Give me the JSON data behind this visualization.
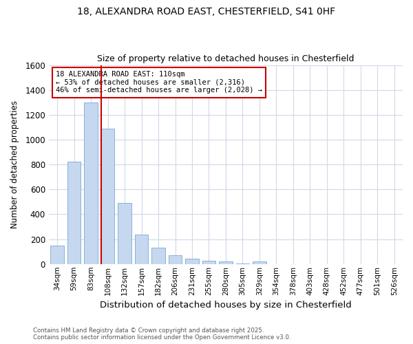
{
  "title_line1": "18, ALEXANDRA ROAD EAST, CHESTERFIELD, S41 0HF",
  "title_line2": "Size of property relative to detached houses in Chesterfield",
  "xlabel": "Distribution of detached houses by size in Chesterfield",
  "ylabel": "Number of detached properties",
  "footer_line1": "Contains HM Land Registry data © Crown copyright and database right 2025.",
  "footer_line2": "Contains public sector information licensed under the Open Government Licence v3.0.",
  "categories": [
    "34sqm",
    "59sqm",
    "83sqm",
    "108sqm",
    "132sqm",
    "157sqm",
    "182sqm",
    "206sqm",
    "231sqm",
    "255sqm",
    "280sqm",
    "305sqm",
    "329sqm",
    "354sqm",
    "378sqm",
    "403sqm",
    "428sqm",
    "452sqm",
    "477sqm",
    "501sqm",
    "526sqm"
  ],
  "values": [
    150,
    825,
    1300,
    1090,
    490,
    235,
    130,
    70,
    45,
    25,
    20,
    5,
    20,
    0,
    0,
    0,
    0,
    0,
    0,
    0,
    0
  ],
  "bar_color": "#c5d8f0",
  "bar_edge_color": "#8ab0d8",
  "grid_color": "#cccccc",
  "bg_color": "#ffffff",
  "plot_bg_color": "#ffffff",
  "red_line_index": 3,
  "annotation_text": "18 ALEXANDRA ROAD EAST: 110sqm\n← 53% of detached houses are smaller (2,316)\n46% of semi-detached houses are larger (2,028) →",
  "annotation_box_color": "#ffffff",
  "annotation_box_edge_color": "#cc0000",
  "ylim": [
    0,
    1600
  ],
  "yticks": [
    0,
    200,
    400,
    600,
    800,
    1000,
    1200,
    1400,
    1600
  ]
}
